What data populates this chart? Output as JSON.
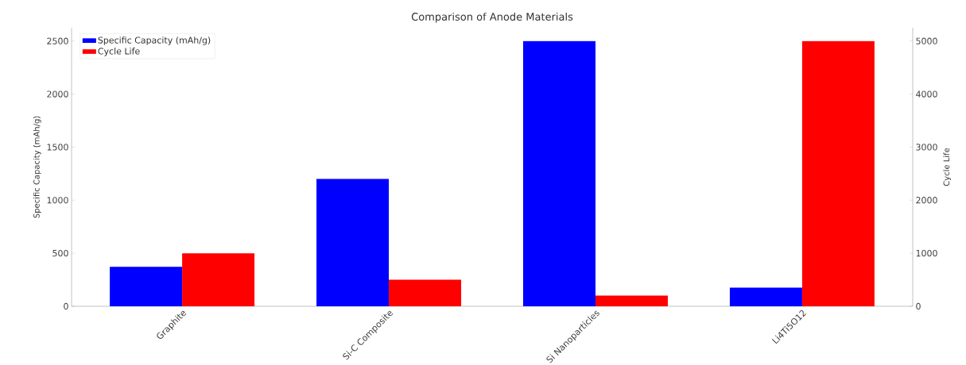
{
  "chart_data": {
    "type": "bar",
    "title": "Comparison of Anode Materials",
    "ylabel": "Specific Capacity (mAh/g)",
    "y2label": "Cycle Life",
    "categories": [
      "Graphite",
      "Si-C Composite",
      "Si Nanoparticles",
      "Li4Ti5O12"
    ],
    "series": [
      {
        "name": "Specific Capacity (mAh/g)",
        "color": "#0000ff",
        "values": [
          372,
          1200,
          2500,
          175
        ]
      },
      {
        "name": "Cycle Life",
        "color": "#ff0000",
        "axis": "y2",
        "values": [
          1000,
          500,
          200,
          5000
        ]
      }
    ],
    "ylim": [
      0,
      2625
    ],
    "yticks": [
      0,
      500,
      1000,
      1500,
      2000,
      2500
    ],
    "y2lim": [
      0,
      5250
    ],
    "y2ticks": [
      0,
      1000,
      2000,
      3000,
      4000,
      5000
    ],
    "legend": "top left"
  }
}
